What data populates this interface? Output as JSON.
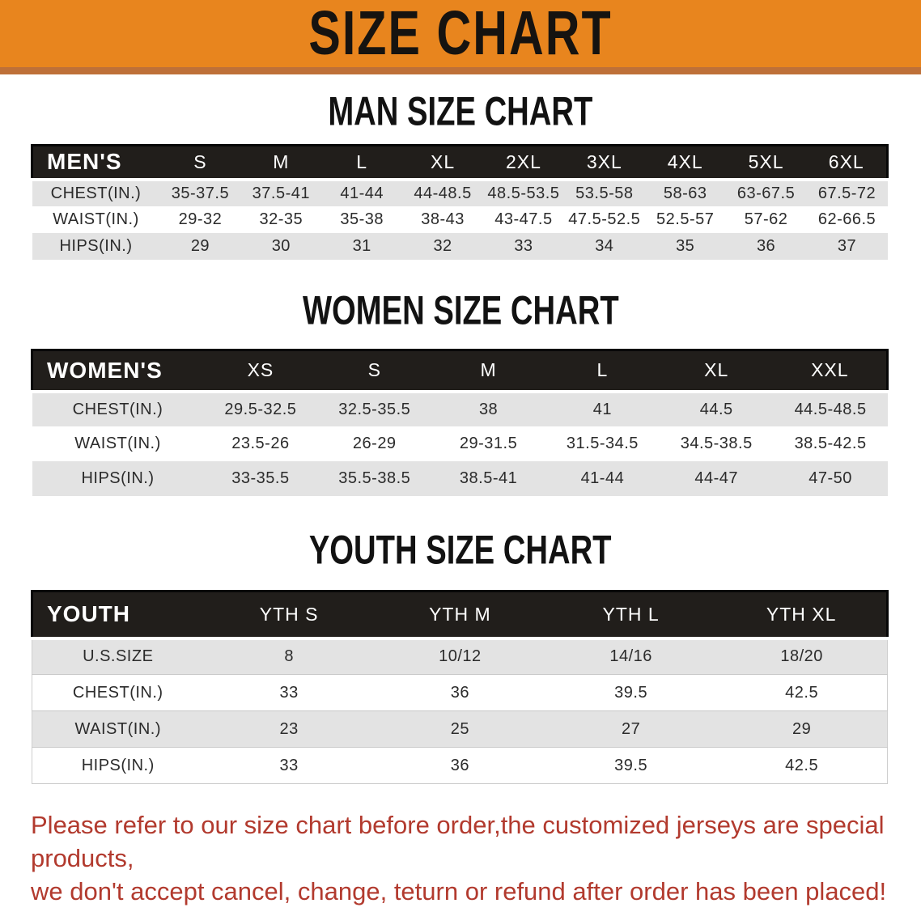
{
  "banner": {
    "title": "SIZE CHART",
    "bg_color": "#E8851E",
    "edge_color": "#BE7038",
    "text_color": "#161310"
  },
  "sections": [
    {
      "id": "men",
      "heading": "MAN SIZE CHART",
      "table": {
        "header_label": "MEN'S",
        "columns": [
          "S",
          "M",
          "L",
          "XL",
          "2XL",
          "3XL",
          "4XL",
          "5XL",
          "6XL"
        ],
        "rows": [
          {
            "label": "CHEST(IN.)",
            "values": [
              "35-37.5",
              "37.5-41",
              "41-44",
              "44-48.5",
              "48.5-53.5",
              "53.5-58",
              "58-63",
              "63-67.5",
              "67.5-72"
            ]
          },
          {
            "label": "WAIST(IN.)",
            "values": [
              "29-32",
              "32-35",
              "35-38",
              "38-43",
              "43-47.5",
              "47.5-52.5",
              "52.5-57",
              "57-62",
              "62-66.5"
            ]
          },
          {
            "label": "HIPS(IN.)",
            "values": [
              "29",
              "30",
              "31",
              "32",
              "33",
              "34",
              "35",
              "36",
              "37"
            ]
          }
        ]
      }
    },
    {
      "id": "women",
      "heading": "WOMEN SIZE CHART",
      "table": {
        "header_label": "WOMEN'S",
        "columns": [
          "XS",
          "S",
          "M",
          "L",
          "XL",
          "XXL"
        ],
        "rows": [
          {
            "label": "CHEST(IN.)",
            "values": [
              "29.5-32.5",
              "32.5-35.5",
              "38",
              "41",
              "44.5",
              "44.5-48.5"
            ]
          },
          {
            "label": "WAIST(IN.)",
            "values": [
              "23.5-26",
              "26-29",
              "29-31.5",
              "31.5-34.5",
              "34.5-38.5",
              "38.5-42.5"
            ]
          },
          {
            "label": "HIPS(IN.)",
            "values": [
              "33-35.5",
              "35.5-38.5",
              "38.5-41",
              "41-44",
              "44-47",
              "47-50"
            ]
          }
        ]
      }
    },
    {
      "id": "youth",
      "heading": "YOUTH SIZE CHART",
      "table": {
        "header_label": "YOUTH",
        "columns": [
          "YTH S",
          "YTH M",
          "YTH L",
          "YTH XL"
        ],
        "rows": [
          {
            "label": "U.S.SIZE",
            "values": [
              "8",
              "10/12",
              "14/16",
              "18/20"
            ]
          },
          {
            "label": "CHEST(IN.)",
            "values": [
              "33",
              "36",
              "39.5",
              "42.5"
            ]
          },
          {
            "label": "WAIST(IN.)",
            "values": [
              "23",
              "25",
              "27",
              "29"
            ]
          },
          {
            "label": "HIPS(IN.)",
            "values": [
              "33",
              "36",
              "39.5",
              "42.5"
            ]
          }
        ]
      }
    }
  ],
  "disclaimer": {
    "line1": "Please refer to our size chart before order,the customized jerseys are special products,",
    "line2": "we don't accept cancel, change, teturn or refund after order has been placed!",
    "color": "#B23A2E"
  },
  "colors": {
    "header_bar_black": "#211E1B",
    "stripe_gray": "#E3E3E3",
    "row_white": "#FFFFFF",
    "body_text": "#2B2B2B"
  }
}
